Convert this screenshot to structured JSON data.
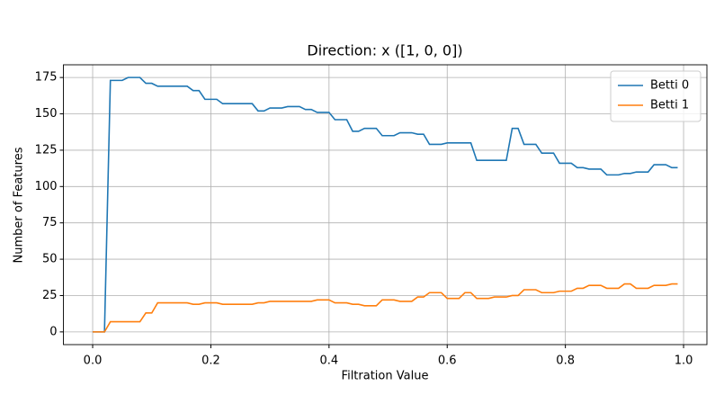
{
  "chart_data": {
    "type": "line",
    "title": "Direction: x ([1, 0, 0])",
    "xlabel": "Filtration Value",
    "ylabel": "Number of Features",
    "x": [
      0,
      0.01,
      0.02,
      0.03,
      0.04,
      0.05,
      0.06,
      0.07,
      0.08,
      0.09,
      0.1,
      0.11,
      0.12,
      0.13,
      0.14,
      0.15,
      0.16,
      0.17,
      0.18,
      0.19,
      0.2,
      0.21,
      0.22,
      0.23,
      0.24,
      0.25,
      0.26,
      0.27,
      0.28,
      0.29,
      0.3,
      0.31,
      0.32,
      0.33,
      0.34,
      0.35,
      0.36,
      0.37,
      0.38,
      0.39,
      0.4,
      0.41,
      0.42,
      0.43,
      0.44,
      0.45,
      0.46,
      0.47,
      0.48,
      0.49,
      0.5,
      0.51,
      0.52,
      0.53,
      0.54,
      0.55,
      0.56,
      0.57,
      0.58,
      0.59,
      0.6,
      0.61,
      0.62,
      0.63,
      0.64,
      0.65,
      0.66,
      0.67,
      0.68,
      0.69,
      0.7,
      0.71,
      0.72,
      0.73,
      0.74,
      0.75,
      0.76,
      0.77,
      0.78,
      0.79,
      0.8,
      0.81,
      0.82,
      0.83,
      0.84,
      0.85,
      0.86,
      0.87,
      0.88,
      0.89,
      0.9,
      0.91,
      0.92,
      0.93,
      0.94,
      0.95,
      0.96,
      0.97,
      0.98,
      0.99
    ],
    "series": [
      {
        "name": "Betti 0",
        "color": "#1f77b4",
        "values": [
          0,
          0,
          0,
          173,
          173,
          173,
          175,
          175,
          175,
          171,
          171,
          169,
          169,
          169,
          169,
          169,
          169,
          166,
          166,
          160,
          160,
          160,
          157,
          157,
          157,
          157,
          157,
          157,
          152,
          152,
          154,
          154,
          154,
          155,
          155,
          155,
          153,
          153,
          151,
          151,
          151,
          146,
          146,
          146,
          138,
          138,
          140,
          140,
          140,
          135,
          135,
          135,
          137,
          137,
          137,
          136,
          136,
          129,
          129,
          129,
          130,
          130,
          130,
          130,
          130,
          118,
          118,
          118,
          118,
          118,
          118,
          140,
          140,
          129,
          129,
          129,
          123,
          123,
          123,
          116,
          116,
          116,
          113,
          113,
          112,
          112,
          112,
          108,
          108,
          108,
          109,
          109,
          110,
          110,
          110,
          115,
          115,
          115,
          113,
          113
        ]
      },
      {
        "name": "Betti 1",
        "color": "#ff7f0e",
        "values": [
          0,
          0,
          0,
          7,
          7,
          7,
          7,
          7,
          7,
          13,
          13,
          20,
          20,
          20,
          20,
          20,
          20,
          19,
          19,
          20,
          20,
          20,
          19,
          19,
          19,
          19,
          19,
          19,
          20,
          20,
          21,
          21,
          21,
          21,
          21,
          21,
          21,
          21,
          22,
          22,
          22,
          20,
          20,
          20,
          19,
          19,
          18,
          18,
          18,
          22,
          22,
          22,
          21,
          21,
          21,
          24,
          24,
          27,
          27,
          27,
          23,
          23,
          23,
          27,
          27,
          23,
          23,
          23,
          24,
          24,
          24,
          25,
          25,
          29,
          29,
          29,
          27,
          27,
          27,
          28,
          28,
          28,
          30,
          30,
          32,
          32,
          32,
          30,
          30,
          30,
          33,
          33,
          30,
          30,
          30,
          32,
          32,
          32,
          33,
          33
        ]
      }
    ],
    "xlim": [
      -0.0495,
      1.0395
    ],
    "ylim": [
      -8.75,
      183.75
    ],
    "xticks": [
      {
        "value": 0,
        "label": "0.0"
      },
      0.2,
      0.4,
      0.6,
      0.8,
      {
        "value": 1,
        "label": "1.0"
      }
    ],
    "yticks": [
      0,
      25,
      50,
      75,
      100,
      125,
      150,
      175
    ],
    "grid": true,
    "legend": "upper right"
  }
}
